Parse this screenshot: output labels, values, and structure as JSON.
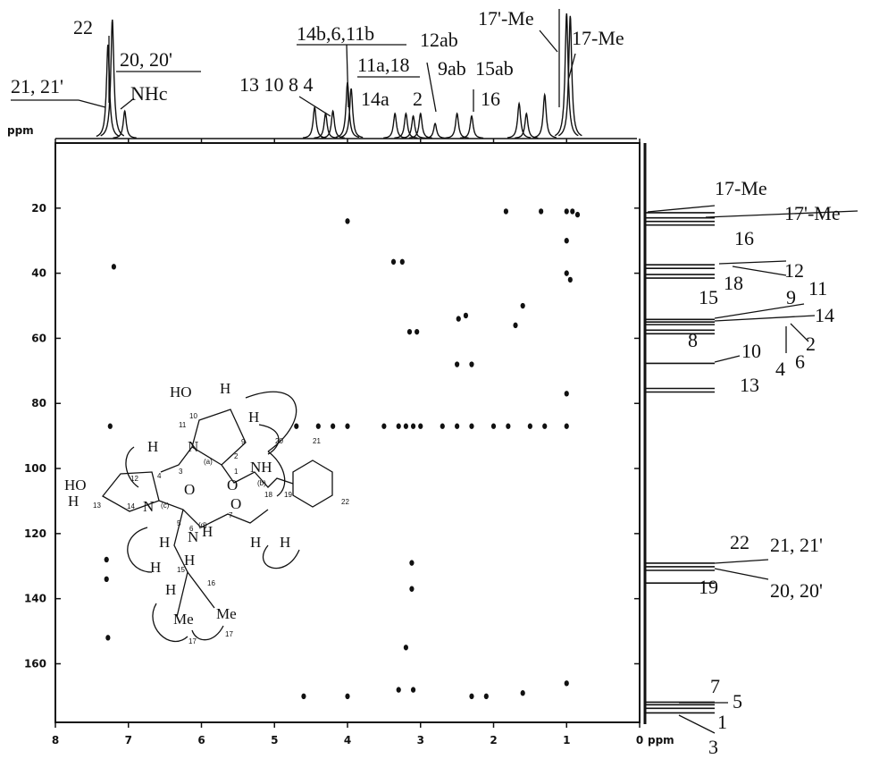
{
  "chart_data": {
    "type": "hmbc",
    "unit": "ppm",
    "xlim": [
      8,
      0
    ],
    "xticks": [
      8,
      7,
      6,
      5,
      4,
      3,
      2,
      1,
      0
    ],
    "ylim": [
      0,
      178
    ],
    "yticks": [
      20,
      40,
      60,
      80,
      100,
      120,
      140,
      160
    ],
    "cross_peaks": {
      "x": [
        4.0,
        1.35,
        1.0,
        0.92,
        0.85,
        1.83,
        3.37,
        3.25,
        1.0,
        1.0,
        0.95,
        3.15,
        3.05,
        2.48,
        2.38,
        1.7,
        1.6,
        1.0,
        1.0,
        7.25,
        4.7,
        4.4,
        4.2,
        4.0,
        3.5,
        3.3,
        3.2,
        3.1,
        3.0,
        2.7,
        2.5,
        2.3,
        2.0,
        1.8,
        1.5,
        1.3,
        1.0,
        3.12,
        3.12,
        7.3,
        7.3,
        7.28,
        7.2,
        4.6,
        4.0,
        3.3,
        3.1,
        2.3,
        2.1,
        1.6,
        2.5,
        2.3,
        3.2
      ],
      "y": [
        24,
        21,
        21,
        21,
        22,
        21,
        36.5,
        36.5,
        30,
        40,
        42,
        58,
        58,
        54,
        53,
        56,
        50,
        77,
        166,
        87,
        87,
        87,
        87,
        87,
        87,
        87,
        87,
        87,
        87,
        87,
        87,
        87,
        87,
        87,
        87,
        87,
        87,
        129,
        137,
        128,
        134,
        152,
        38,
        170,
        170,
        168,
        168,
        170,
        170,
        169,
        68,
        68,
        155
      ]
    },
    "proton_spectrum": {
      "x": [
        7.28,
        7.22,
        7.05,
        4.45,
        4.3,
        4.2,
        4.0,
        3.95,
        3.35,
        3.2,
        3.1,
        3.0,
        2.8,
        2.5,
        2.3,
        1.65,
        1.55,
        1.3,
        1.0,
        0.95
      ],
      "values": [
        0.75,
        0.95,
        0.22,
        0.25,
        0.2,
        0.22,
        0.45,
        0.4,
        0.2,
        0.2,
        0.18,
        0.2,
        0.12,
        0.2,
        0.18,
        0.28,
        0.2,
        0.35,
        1.0,
        0.98
      ]
    },
    "carbon_peaks": [
      21.4,
      23,
      24.1,
      25.2,
      37.4,
      38.5,
      40.4,
      41.5,
      54.2,
      55,
      55.8,
      57.5,
      58.6,
      67.7,
      75.4,
      76.5,
      129.1,
      130.2,
      131.3,
      135.2,
      171.8,
      172.6,
      173.7,
      175.1
    ],
    "proton_labels": [
      "22",
      "21, 21'",
      "20, 20'",
      "NHc",
      "14b,6,11b",
      "13 10 8 4",
      "11a,18",
      "14a",
      "2",
      "12ab",
      "9ab",
      "15ab",
      "16",
      "17'-Me",
      "17-Me"
    ],
    "carbon_labels": [
      "17-Me",
      "17'-Me",
      "16",
      "12",
      "9",
      "15",
      "18",
      "11",
      "14",
      "2",
      "4",
      "6",
      "8",
      "10",
      "13",
      "22",
      "21, 21'",
      "19",
      "20, 20'",
      "7",
      "5",
      "1",
      "3"
    ],
    "structure_labels": [
      "HO",
      "H",
      "H",
      "N",
      "H",
      "O",
      "NH",
      "HO",
      "H",
      "N",
      "O",
      "O",
      "H",
      "N",
      "H",
      "H",
      "H",
      "H",
      "H",
      "H",
      "Me",
      "Me",
      "10",
      "11",
      "9",
      "2",
      "1",
      "(a)",
      "(b)",
      "12",
      "4",
      "3",
      "13",
      "14",
      "(c)",
      "5",
      "6",
      "(d)",
      "7",
      "18",
      "20",
      "21",
      "19",
      "22",
      "15",
      "16",
      "17",
      "17"
    ]
  }
}
